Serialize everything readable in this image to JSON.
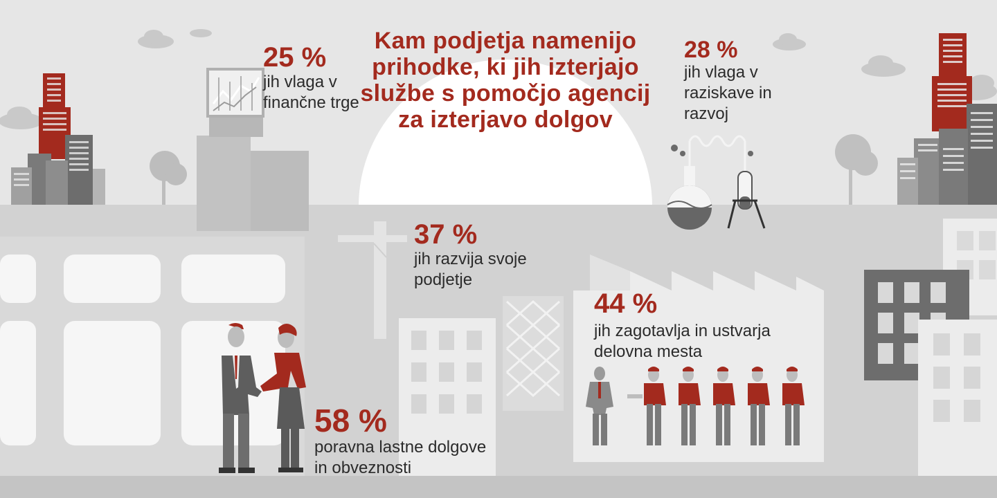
{
  "title": "Kam podjetja namenijo prihodke, ki jih izterjajo službe s pomočjo agencij za izterjavo dolgov",
  "colors": {
    "accent_red": "#a32a1e",
    "text_dark": "#2b2b2b",
    "background": "#e6e6e6",
    "building_gray": "#6d6d6d"
  },
  "stats": [
    {
      "id": "financial-markets",
      "percent": "25 %",
      "label": "jih vlaga v\nfinančne trge",
      "icon": "stock-chart-icon"
    },
    {
      "id": "research",
      "percent": "28 %",
      "label": "jih vlaga v\nraziskave in\nrazvoj",
      "icon": "lab-flask-icon"
    },
    {
      "id": "business-growth",
      "percent": "37 %",
      "label": "jih razvija svoje\npodjetje",
      "icon": "construction-crane-icon"
    },
    {
      "id": "jobs",
      "percent": "44 %",
      "label": "jih zagotavlja in ustvarja\ndelovna mesta",
      "icon": "workers-icon"
    },
    {
      "id": "debts",
      "percent": "58 %",
      "label": "poravna lastne dolgove\nin obveznosti",
      "icon": "handshake-icon"
    }
  ]
}
